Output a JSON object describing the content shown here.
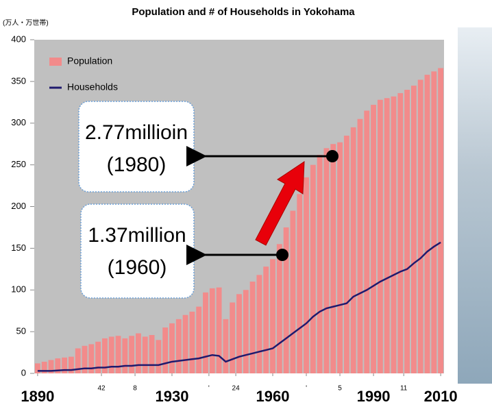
{
  "chart_data": {
    "type": "bar-line",
    "title": "Population and # of Households in Yokohama",
    "y_unit_label": "(万人・万世帯)",
    "x": [
      1890,
      1892,
      1894,
      1896,
      1898,
      1900,
      1902,
      1904,
      1906,
      1908,
      1910,
      1912,
      1914,
      1916,
      1918,
      1920,
      1922,
      1924,
      1926,
      1928,
      1930,
      1932,
      1934,
      1936,
      1938,
      1940,
      1942,
      1944,
      1946,
      1948,
      1950,
      1952,
      1954,
      1956,
      1958,
      1960,
      1962,
      1964,
      1966,
      1968,
      1970,
      1972,
      1974,
      1976,
      1978,
      1980,
      1982,
      1984,
      1986,
      1988,
      1990,
      1992,
      1994,
      1996,
      1998,
      2000,
      2002,
      2004,
      2006,
      2008,
      2010
    ],
    "series": [
      {
        "name": "Population",
        "color": "#f28b8b",
        "type": "bar",
        "values": [
          12,
          14,
          16,
          18,
          19,
          20,
          30,
          33,
          35,
          38,
          42,
          44,
          45,
          42,
          45,
          48,
          44,
          46,
          40,
          55,
          60,
          65,
          70,
          74,
          80,
          97,
          102,
          103,
          65,
          85,
          95,
          100,
          110,
          118,
          128,
          137,
          155,
          175,
          195,
          215,
          235,
          250,
          262,
          270,
          275,
          277,
          285,
          295,
          305,
          315,
          322,
          328,
          330,
          332,
          336,
          340,
          345,
          352,
          358,
          362,
          366
        ]
      },
      {
        "name": "Households",
        "color": "#1f1a6e",
        "type": "line",
        "values": [
          3,
          3,
          3,
          3.5,
          4,
          4,
          5,
          6,
          6,
          7,
          7,
          8,
          8,
          9,
          9,
          10,
          10,
          10,
          10,
          12,
          14,
          15,
          16,
          17,
          18,
          20,
          22,
          21,
          14,
          17,
          20,
          22,
          24,
          26,
          28,
          30,
          36,
          42,
          48,
          54,
          60,
          68,
          74,
          78,
          80,
          82,
          84,
          92,
          96,
          100,
          105,
          110,
          114,
          118,
          122,
          125,
          132,
          138,
          146,
          152,
          157
        ]
      }
    ],
    "xlim": [
      1889,
      2011
    ],
    "xticks": [
      1890,
      {
        "value": 1909,
        "label": "42"
      },
      {
        "value": 1919,
        "label": "8"
      },
      1930,
      {
        "value": 1941,
        "label": "'"
      },
      {
        "value": 1949,
        "label": "24"
      },
      1960,
      {
        "value": 1970,
        "label": "'"
      },
      {
        "value": 1980,
        "label": "5"
      },
      1990,
      {
        "value": 1999,
        "label": "11"
      },
      2010
    ],
    "ylim": [
      0,
      400
    ],
    "yticks": [
      0,
      50,
      100,
      150,
      200,
      250,
      300,
      350,
      400
    ],
    "legend": "upper left",
    "annotations": [
      {
        "lines": [
          "2.77millioin",
          "(1980)"
        ]
      },
      {
        "lines": [
          "1.37million",
          "(1960)"
        ]
      }
    ]
  }
}
